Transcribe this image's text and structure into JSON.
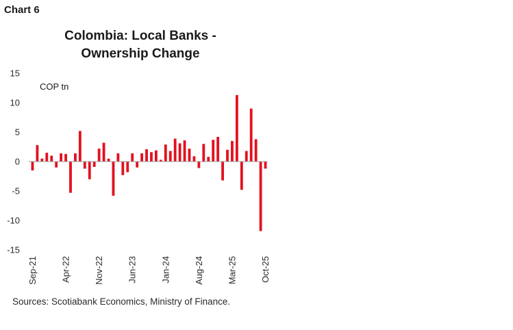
{
  "header": {
    "chart_label": "Chart 6"
  },
  "source": {
    "text": "Sources: Scotiabank Economics, Ministry of Finance."
  },
  "colors": {
    "bar": "#e3111f",
    "axis": "#999999"
  },
  "chart_data": {
    "type": "bar",
    "title_lines": [
      "Colombia: Local Banks -",
      "Ownership Change"
    ],
    "xlabel": "",
    "ylabel": "",
    "unit_label": "COP tn",
    "ylim": [
      -15,
      15
    ],
    "yticks": [
      15,
      10,
      5,
      0,
      -5,
      -10,
      -15
    ],
    "xtick_labels": [
      "Sep-21",
      "Apr-22",
      "Nov-22",
      "Jun-23",
      "Jan-24",
      "Aug-24",
      "Mar-25",
      "Oct-25"
    ],
    "xtick_index": [
      0,
      7,
      14,
      21,
      28,
      35,
      42,
      49
    ],
    "grid": false,
    "categories": [
      "Sep-21",
      "Oct-21",
      "Nov-21",
      "Dec-21",
      "Jan-22",
      "Feb-22",
      "Mar-22",
      "Apr-22",
      "May-22",
      "Jun-22",
      "Jul-22",
      "Aug-22",
      "Sep-22",
      "Oct-22",
      "Nov-22",
      "Dec-22",
      "Jan-23",
      "Feb-23",
      "Mar-23",
      "Apr-23",
      "May-23",
      "Jun-23",
      "Jul-23",
      "Aug-23",
      "Sep-23",
      "Oct-23",
      "Nov-23",
      "Dec-23",
      "Jan-24",
      "Feb-24",
      "Mar-24",
      "Apr-24",
      "May-24",
      "Jun-24",
      "Jul-24",
      "Aug-24",
      "Sep-24",
      "Oct-24",
      "Nov-24",
      "Dec-24",
      "Jan-25",
      "Feb-25",
      "Mar-25",
      "Apr-25",
      "May-25",
      "Jun-25",
      "Jul-25",
      "Aug-25",
      "Sep-25",
      "Oct-25"
    ],
    "values": [
      -1.5,
      2.8,
      0.5,
      1.5,
      1.0,
      -1.0,
      1.4,
      1.3,
      -5.3,
      1.4,
      5.2,
      -1.2,
      -3.0,
      -0.9,
      2.2,
      3.2,
      0.5,
      -5.8,
      1.4,
      -2.3,
      -1.8,
      1.4,
      -1.0,
      1.4,
      2.1,
      1.6,
      1.9,
      0.3,
      2.9,
      1.8,
      3.9,
      3.1,
      3.6,
      2.2,
      0.9,
      -1.1,
      3.0,
      0.8,
      3.7,
      4.2,
      -3.2,
      2.0,
      3.5,
      11.3,
      -4.8,
      1.8,
      9.0,
      3.8,
      -11.8,
      -1.2
    ]
  }
}
